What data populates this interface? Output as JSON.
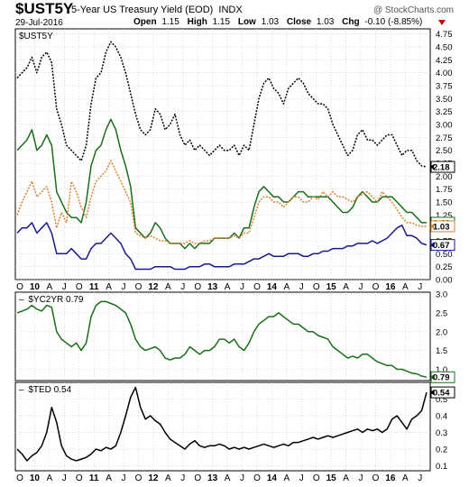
{
  "header": {
    "symbol": "$UST5Y",
    "description": "5-Year US Treasury Yield (EOD)",
    "exchange": "INDX",
    "date": "29-Jul-2016",
    "watermark": "@ StockCharts.com",
    "open_label": "Open",
    "open": "1.15",
    "high_label": "High",
    "high": "1.15",
    "low_label": "Low",
    "low": "1.03",
    "close_label": "Close",
    "close": "1.03",
    "chg_label": "Chg",
    "chg": "-0.10 (-8.85%)",
    "chg_arrow_color": "#cc0000"
  },
  "colors": {
    "black": "#000000",
    "green": "#1a6e1a",
    "orange": "#e0802a",
    "navy": "#1a1a8a",
    "grid": "#c8c8c8"
  },
  "chart_data": [
    {
      "type": "line",
      "panel": "main",
      "legend_label": "$UST5Y",
      "x_ticks": [
        "O",
        "10",
        "A",
        "J",
        "O",
        "11",
        "A",
        "J",
        "O",
        "12",
        "A",
        "J",
        "O",
        "13",
        "A",
        "J",
        "O",
        "14",
        "A",
        "J",
        "O",
        "15",
        "A",
        "J",
        "O",
        "16",
        "A",
        "J"
      ],
      "x_tick_bold": [
        false,
        true,
        false,
        false,
        false,
        true,
        false,
        false,
        false,
        true,
        false,
        false,
        false,
        true,
        false,
        false,
        false,
        true,
        false,
        false,
        false,
        true,
        false,
        false,
        false,
        true,
        false,
        false
      ],
      "y_ticks": [
        "0.00",
        "0.25",
        "0.50",
        "0.75",
        "1.00",
        "1.25",
        "1.50",
        "1.75",
        "2.00",
        "2.25",
        "2.50",
        "2.75",
        "3.00",
        "3.25",
        "3.50",
        "3.75",
        "4.00",
        "4.25",
        "4.50",
        "4.75"
      ],
      "ylim": [
        0,
        4.85
      ],
      "series": [
        {
          "color": "black",
          "dashed": true,
          "last_value": "2.18",
          "values": [
            3.9,
            4.0,
            4.1,
            4.3,
            4.0,
            4.3,
            4.4,
            4.2,
            3.3,
            3.0,
            2.6,
            2.5,
            2.4,
            2.3,
            2.6,
            3.4,
            3.9,
            4.0,
            4.4,
            4.6,
            4.5,
            4.3,
            4.0,
            3.6,
            3.2,
            2.9,
            2.8,
            2.9,
            3.3,
            3.2,
            2.9,
            3.0,
            3.2,
            2.8,
            2.6,
            2.7,
            2.5,
            2.6,
            2.5,
            2.4,
            2.5,
            2.6,
            2.5,
            2.5,
            2.6,
            2.4,
            2.6,
            2.5,
            3.0,
            3.5,
            3.8,
            3.9,
            3.7,
            3.6,
            3.4,
            3.7,
            3.8,
            3.9,
            3.8,
            3.6,
            3.5,
            3.4,
            3.4,
            3.3,
            3.0,
            2.8,
            2.6,
            2.4,
            2.5,
            2.8,
            2.9,
            2.7,
            2.7,
            2.6,
            2.7,
            2.8,
            2.8,
            2.6,
            2.4,
            2.5,
            2.5,
            2.3,
            2.2,
            2.18
          ]
        },
        {
          "color": "green",
          "dashed": false,
          "last_value": "1.46",
          "values": [
            2.5,
            2.6,
            2.7,
            2.9,
            2.5,
            2.6,
            2.8,
            2.6,
            1.7,
            1.5,
            1.3,
            1.2,
            1.2,
            1.1,
            1.5,
            2.2,
            2.5,
            2.6,
            2.9,
            3.1,
            2.9,
            2.5,
            2.2,
            1.8,
            1.0,
            0.9,
            0.8,
            0.9,
            1.1,
            1.0,
            0.8,
            0.7,
            0.7,
            0.7,
            0.6,
            0.7,
            0.6,
            0.7,
            0.7,
            0.7,
            0.8,
            0.8,
            0.8,
            0.8,
            0.9,
            0.8,
            1.0,
            1.0,
            1.4,
            1.7,
            1.8,
            1.7,
            1.6,
            1.6,
            1.5,
            1.5,
            1.6,
            1.7,
            1.7,
            1.6,
            1.6,
            1.6,
            1.6,
            1.6,
            1.5,
            1.4,
            1.3,
            1.3,
            1.4,
            1.6,
            1.7,
            1.6,
            1.5,
            1.5,
            1.6,
            1.6,
            1.6,
            1.5,
            1.4,
            1.3,
            1.3,
            1.2,
            1.1,
            1.1
          ]
        },
        {
          "color": "orange",
          "dashed": true,
          "last_value": "1.03",
          "values": [
            1.25,
            1.5,
            1.7,
            1.9,
            1.6,
            1.7,
            1.8,
            1.5,
            1.0,
            1.3,
            1.1,
            1.9,
            1.7,
            1.4,
            1.2,
            1.6,
            1.9,
            2.0,
            2.1,
            2.3,
            2.1,
            1.9,
            1.7,
            1.5,
            0.9,
            0.85,
            0.8,
            0.85,
            0.8,
            0.75,
            0.75,
            0.7,
            0.7,
            0.7,
            0.7,
            0.75,
            0.7,
            0.7,
            0.75,
            0.75,
            0.8,
            0.8,
            0.8,
            0.8,
            0.85,
            0.8,
            0.9,
            0.9,
            1.2,
            1.5,
            1.6,
            1.6,
            1.5,
            1.5,
            1.4,
            1.5,
            1.6,
            1.6,
            1.5,
            1.5,
            1.6,
            1.55,
            1.7,
            1.6,
            1.7,
            1.6,
            1.6,
            1.55,
            1.5,
            1.6,
            1.65,
            1.7,
            1.6,
            1.5,
            1.7,
            1.6,
            1.5,
            1.35,
            1.2,
            1.1,
            1.1,
            1.05,
            1.03,
            1.03
          ]
        },
        {
          "color": "navy",
          "dashed": false,
          "last_value": "0.67",
          "values": [
            0.9,
            1.0,
            1.0,
            1.1,
            0.9,
            1.0,
            1.1,
            0.9,
            0.5,
            0.5,
            0.5,
            0.6,
            0.5,
            0.4,
            0.4,
            0.6,
            0.7,
            0.7,
            0.8,
            0.9,
            0.8,
            0.7,
            0.5,
            0.4,
            0.2,
            0.2,
            0.2,
            0.2,
            0.25,
            0.25,
            0.25,
            0.25,
            0.2,
            0.2,
            0.2,
            0.25,
            0.25,
            0.25,
            0.3,
            0.3,
            0.25,
            0.25,
            0.25,
            0.25,
            0.3,
            0.3,
            0.3,
            0.35,
            0.4,
            0.4,
            0.45,
            0.5,
            0.45,
            0.45,
            0.45,
            0.5,
            0.5,
            0.5,
            0.45,
            0.45,
            0.5,
            0.5,
            0.55,
            0.55,
            0.6,
            0.6,
            0.6,
            0.65,
            0.65,
            0.7,
            0.7,
            0.7,
            0.75,
            0.7,
            0.75,
            0.8,
            0.9,
            1.0,
            1.05,
            0.85,
            0.85,
            0.8,
            0.7,
            0.67
          ]
        }
      ]
    },
    {
      "type": "line",
      "panel": "yc2yr",
      "legend_label": "$YC2YR 0.79",
      "y_ticks": [
        "1.0",
        "1.5",
        "2.0",
        "2.5",
        "3.0"
      ],
      "ylim": [
        0.7,
        3.05
      ],
      "series": [
        {
          "color": "green",
          "dashed": false,
          "last_value": "0.79",
          "values": [
            2.5,
            2.55,
            2.6,
            2.7,
            2.6,
            2.55,
            2.7,
            2.65,
            2.0,
            1.8,
            1.7,
            1.6,
            1.7,
            1.5,
            1.7,
            2.4,
            2.7,
            2.8,
            2.8,
            2.75,
            2.7,
            2.6,
            2.5,
            2.2,
            1.8,
            1.6,
            1.5,
            1.55,
            1.6,
            1.5,
            1.3,
            1.25,
            1.3,
            1.3,
            1.4,
            1.6,
            1.5,
            1.4,
            1.5,
            1.5,
            1.6,
            1.8,
            1.8,
            1.7,
            1.8,
            1.6,
            1.5,
            1.7,
            2.0,
            2.2,
            2.3,
            2.4,
            2.4,
            2.5,
            2.4,
            2.3,
            2.2,
            2.2,
            2.1,
            2.0,
            2.0,
            1.9,
            1.85,
            1.8,
            1.6,
            1.5,
            1.4,
            1.3,
            1.35,
            1.3,
            1.4,
            1.4,
            1.3,
            1.2,
            1.15,
            1.1,
            1.1,
            1.0,
            1.0,
            0.95,
            0.9,
            0.88,
            0.82,
            0.79
          ]
        }
      ]
    },
    {
      "type": "line",
      "panel": "ted",
      "legend_label": "$TED 0.54",
      "x_ticks": [
        "O",
        "10",
        "A",
        "J",
        "O",
        "11",
        "A",
        "J",
        "O",
        "12",
        "A",
        "J",
        "O",
        "13",
        "A",
        "J",
        "O",
        "14",
        "A",
        "J",
        "O",
        "15",
        "A",
        "J",
        "O",
        "16",
        "A",
        "J"
      ],
      "y_ticks": [
        "0.1",
        "0.2",
        "0.3",
        "0.4",
        "0.5"
      ],
      "ylim": [
        0.07,
        0.6
      ],
      "series": [
        {
          "color": "black",
          "dashed": false,
          "last_value": "0.54",
          "values": [
            0.2,
            0.17,
            0.13,
            0.16,
            0.18,
            0.22,
            0.3,
            0.45,
            0.36,
            0.22,
            0.16,
            0.14,
            0.13,
            0.14,
            0.15,
            0.17,
            0.2,
            0.19,
            0.21,
            0.2,
            0.22,
            0.3,
            0.4,
            0.51,
            0.57,
            0.45,
            0.38,
            0.4,
            0.37,
            0.35,
            0.3,
            0.26,
            0.24,
            0.22,
            0.2,
            0.23,
            0.25,
            0.22,
            0.21,
            0.22,
            0.22,
            0.23,
            0.22,
            0.2,
            0.21,
            0.2,
            0.21,
            0.2,
            0.21,
            0.22,
            0.23,
            0.22,
            0.21,
            0.22,
            0.23,
            0.22,
            0.24,
            0.24,
            0.25,
            0.26,
            0.27,
            0.26,
            0.27,
            0.28,
            0.27,
            0.28,
            0.29,
            0.3,
            0.31,
            0.32,
            0.3,
            0.32,
            0.31,
            0.32,
            0.3,
            0.32,
            0.38,
            0.4,
            0.36,
            0.32,
            0.38,
            0.4,
            0.43,
            0.54
          ]
        }
      ]
    }
  ]
}
